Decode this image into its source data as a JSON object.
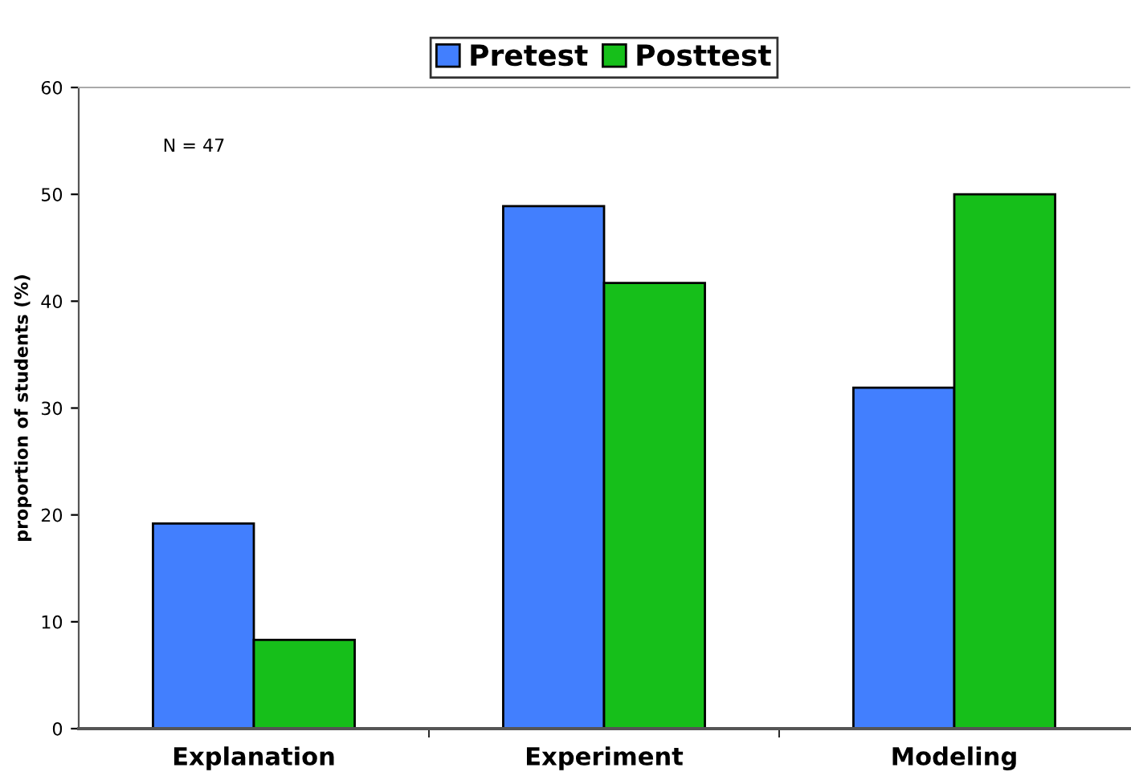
{
  "chart_data": {
    "type": "bar",
    "ylabel": "proportion of students (%)",
    "categories": [
      "Explanation",
      "Experiment",
      "Modeling"
    ],
    "series": [
      {
        "name": "Pretest",
        "color": "#427ffe",
        "values": [
          19.2,
          48.9,
          31.9
        ]
      },
      {
        "name": "Posttest",
        "color": "#16bf1a",
        "values": [
          8.3,
          41.7,
          50.0
        ]
      }
    ],
    "ylim": [
      0,
      60
    ],
    "yticks": [
      0,
      10,
      20,
      30,
      40,
      50,
      60
    ],
    "grid": false,
    "legend": "top",
    "annotations": [
      "N = 47"
    ]
  }
}
